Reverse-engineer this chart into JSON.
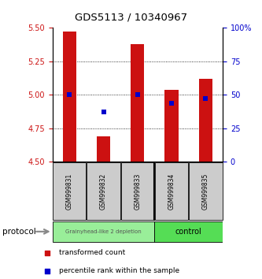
{
  "title": "GDS5113 / 10340967",
  "samples": [
    "GSM999831",
    "GSM999832",
    "GSM999833",
    "GSM999834",
    "GSM999835"
  ],
  "bar_values": [
    5.47,
    4.69,
    5.38,
    5.04,
    5.12
  ],
  "percentile_values": [
    50.0,
    37.0,
    50.0,
    44.0,
    47.0
  ],
  "ylim_left": [
    4.5,
    5.5
  ],
  "ylim_right": [
    0,
    100
  ],
  "yticks_left": [
    4.5,
    4.75,
    5.0,
    5.25,
    5.5
  ],
  "yticks_right": [
    0,
    25,
    50,
    75,
    100
  ],
  "bar_color": "#cc1111",
  "dot_color": "#0000cc",
  "bar_bottom": 4.5,
  "group1_samples": [
    0,
    1,
    2
  ],
  "group2_samples": [
    3,
    4
  ],
  "group1_label": "Grainyhead-like 2 depletion",
  "group2_label": "control",
  "group1_color": "#99ee99",
  "group2_color": "#55dd55",
  "protocol_label": "protocol",
  "legend_bar_label": "transformed count",
  "legend_dot_label": "percentile rank within the sample",
  "tick_color_left": "#cc1111",
  "tick_color_right": "#0000cc",
  "sample_box_color": "#cccccc",
  "bar_width": 0.4
}
